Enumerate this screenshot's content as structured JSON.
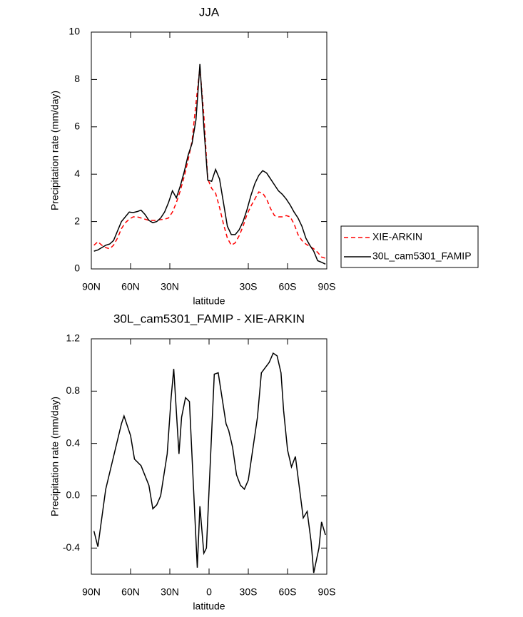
{
  "chart_data": [
    {
      "type": "line",
      "title": "JJA",
      "xlabel": "latitude",
      "ylabel": "Precipitation rate (mm/day)",
      "x": [
        88,
        85,
        82,
        79,
        76,
        73,
        70,
        67,
        64,
        61,
        58,
        55,
        52,
        49,
        46,
        43,
        40,
        37,
        34,
        31,
        28,
        25,
        22,
        19,
        16,
        13,
        10,
        7,
        4,
        1,
        -2,
        -5,
        -8,
        -11,
        -14,
        -17,
        -20,
        -23,
        -26,
        -29,
        -32,
        -35,
        -38,
        -41,
        -44,
        -47,
        -50,
        -53,
        -56,
        -59,
        -62,
        -65,
        -68,
        -71,
        -74,
        -77,
        -80,
        -83,
        -86,
        -89
      ],
      "series": [
        {
          "name": "XIE-ARKIN",
          "color": "#ff0000",
          "style": "dashed",
          "values": [
            1.0,
            1.15,
            1.0,
            0.9,
            0.85,
            1.0,
            1.3,
            1.7,
            1.95,
            2.1,
            2.2,
            2.2,
            2.15,
            2.1,
            2.05,
            2.05,
            2.05,
            2.08,
            2.1,
            2.15,
            2.4,
            2.8,
            3.3,
            3.9,
            4.6,
            5.4,
            7.0,
            8.5,
            6.5,
            3.8,
            3.4,
            3.2,
            2.6,
            1.9,
            1.3,
            1.0,
            1.1,
            1.4,
            1.8,
            2.3,
            2.65,
            2.95,
            3.25,
            3.2,
            2.95,
            2.55,
            2.25,
            2.2,
            2.2,
            2.25,
            2.2,
            1.9,
            1.45,
            1.2,
            1.05,
            0.95,
            0.85,
            0.7,
            0.5,
            0.45
          ]
        },
        {
          "name": "30L_cam5301_FAMIP",
          "color": "#000000",
          "style": "solid",
          "values": [
            0.75,
            0.8,
            0.9,
            1.0,
            1.05,
            1.2,
            1.6,
            2.0,
            2.2,
            2.4,
            2.38,
            2.42,
            2.48,
            2.3,
            2.05,
            1.95,
            2.0,
            2.15,
            2.4,
            2.8,
            3.3,
            3.0,
            3.5,
            4.1,
            4.8,
            5.3,
            6.3,
            8.65,
            6.0,
            3.75,
            3.7,
            4.2,
            3.8,
            2.8,
            1.8,
            1.45,
            1.45,
            1.65,
            2.0,
            2.5,
            3.1,
            3.6,
            3.95,
            4.15,
            4.05,
            3.8,
            3.55,
            3.3,
            3.15,
            2.95,
            2.7,
            2.4,
            2.15,
            1.8,
            1.3,
            1.0,
            0.75,
            0.35,
            0.28,
            0.2
          ]
        }
      ],
      "xlim": [
        90,
        -90
      ],
      "xticks": [
        {
          "value": 90,
          "label": "90N"
        },
        {
          "value": 60,
          "label": "60N"
        },
        {
          "value": 30,
          "label": "30N"
        },
        {
          "value": -30,
          "label": "30S"
        },
        {
          "value": -60,
          "label": "60S"
        },
        {
          "value": -90,
          "label": "90S"
        }
      ],
      "ylim": [
        0,
        10
      ],
      "yticks": [
        0,
        2,
        4,
        6,
        8,
        10
      ],
      "legend": "right"
    },
    {
      "type": "line",
      "title": "30L_cam5301_FAMIP - XIE-ARKIN",
      "xlabel": "latitude",
      "ylabel": "Precipitation rate (mm/day)",
      "x": [
        88,
        85,
        79,
        73,
        67,
        65,
        60,
        57,
        52,
        46,
        43,
        40,
        37,
        32,
        29,
        27,
        23,
        21,
        18,
        15,
        9,
        7,
        4,
        2,
        -4,
        -7,
        -13,
        -15,
        -18,
        -21,
        -24,
        -27,
        -30,
        -37,
        -40,
        -46,
        -49,
        -52,
        -55,
        -57,
        -60,
        -63,
        -66,
        -72,
        -75,
        -78,
        -80,
        -84,
        -86,
        -89
      ],
      "series": [
        {
          "name": "30L_cam5301_FAMIP - XIE-ARKIN",
          "color": "#000000",
          "style": "solid",
          "values": [
            -0.27,
            -0.39,
            0.05,
            0.3,
            0.55,
            0.61,
            0.46,
            0.28,
            0.23,
            0.08,
            -0.1,
            -0.07,
            0.0,
            0.32,
            0.75,
            0.97,
            0.32,
            0.6,
            0.75,
            0.72,
            -0.55,
            -0.08,
            -0.44,
            -0.4,
            0.93,
            0.94,
            0.55,
            0.5,
            0.37,
            0.16,
            0.08,
            0.05,
            0.12,
            0.6,
            0.94,
            1.02,
            1.09,
            1.07,
            0.94,
            0.65,
            0.35,
            0.22,
            0.3,
            -0.17,
            -0.12,
            -0.35,
            -0.59,
            -0.4,
            -0.2,
            -0.3
          ]
        }
      ],
      "xlim": [
        90,
        -90
      ],
      "xticks": [
        {
          "value": 90,
          "label": "90N"
        },
        {
          "value": 60,
          "label": "60N"
        },
        {
          "value": 30,
          "label": "30N"
        },
        0,
        {
          "value": -30,
          "label": "30S"
        },
        {
          "value": -60,
          "label": "60S"
        },
        {
          "value": -90,
          "label": "90S"
        }
      ],
      "ylim": [
        -0.6,
        1.2
      ],
      "yticks": [
        {
          "value": -0.4,
          "label": "-0.4"
        },
        {
          "value": 0,
          "label": "0.0"
        },
        {
          "value": 0.4,
          "label": "0.4"
        },
        {
          "value": 0.8,
          "label": "0.8"
        },
        {
          "value": 1.2,
          "label": "1.2"
        }
      ]
    }
  ]
}
